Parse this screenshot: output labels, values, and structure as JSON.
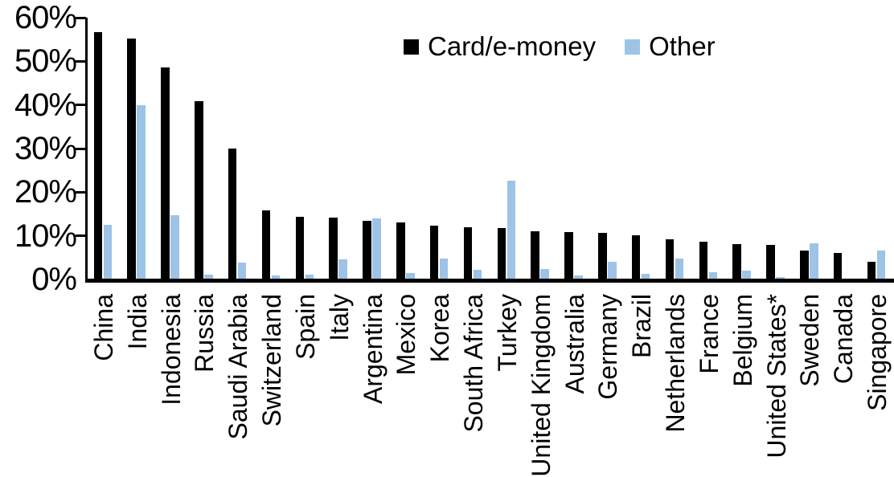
{
  "chart_data": {
    "type": "bar",
    "title": "",
    "xlabel": "",
    "ylabel": "",
    "grid": false,
    "legend_position": "top-center",
    "y_axis": {
      "min": 0,
      "max": 60,
      "step": 10,
      "tick_labels": [
        "0%",
        "10%",
        "20%",
        "30%",
        "40%",
        "50%",
        "60%"
      ]
    },
    "categories": [
      "China",
      "India",
      "Indonesia",
      "Russia",
      "Saudi Arabia",
      "Switzerland",
      "Spain",
      "Italy",
      "Argentina",
      "Mexico",
      "Korea",
      "South Africa",
      "Turkey",
      "United Kingdom",
      "Australia",
      "Germany",
      "Brazil",
      "Netherlands",
      "France",
      "Belgium",
      "United States*",
      "Sweden",
      "Canada",
      "Singapore"
    ],
    "series": [
      {
        "name": "Card/e-money",
        "color": "#000000",
        "values": [
          56.5,
          55.1,
          48.4,
          40.6,
          29.8,
          15.6,
          14.2,
          14.0,
          13.3,
          12.9,
          12.2,
          11.7,
          11.6,
          10.9,
          10.7,
          10.5,
          9.9,
          9.0,
          8.5,
          7.9,
          7.8,
          6.4,
          5.8,
          3.8
        ]
      },
      {
        "name": "Other",
        "color": "#9DC3E6",
        "values": [
          12.3,
          39.8,
          14.5,
          0.9,
          3.7,
          0.7,
          0.9,
          4.5,
          13.8,
          1.3,
          4.6,
          2.1,
          22.4,
          2.2,
          0.8,
          3.8,
          1.1,
          4.6,
          1.4,
          1.8,
          0.3,
          8.1,
          0.0,
          6.5
        ]
      }
    ]
  }
}
